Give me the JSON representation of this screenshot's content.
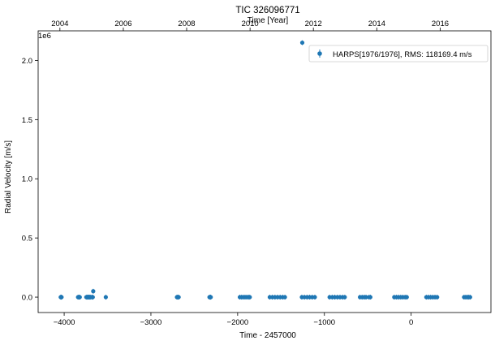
{
  "chart_data": {
    "type": "scatter",
    "title": "TIC 326096771",
    "xlabel": "Time - 2457000",
    "ylabel": "Radial Velocity [m/s]",
    "top_xlabel": "Time [Year]",
    "y_offset_label": "1e6",
    "xlim": [
      -4300,
      920
    ],
    "ylim": [
      -130000,
      2250000
    ],
    "x_ticks": [
      -4000,
      -3000,
      -2000,
      -1000,
      0
    ],
    "x_tick_labels": [
      "−4000",
      "−3000",
      "−2000",
      "−1000",
      "0"
    ],
    "y_ticks": [
      0,
      500000,
      1000000,
      1500000,
      2000000
    ],
    "y_tick_labels": [
      "0.0",
      "0.5",
      "1.0",
      "1.5",
      "2.0"
    ],
    "top_ticks": [
      {
        "label": "2004",
        "x": -4049
      },
      {
        "label": "2006",
        "x": -3318
      },
      {
        "label": "2008",
        "x": -2588
      },
      {
        "label": "2010",
        "x": -1857
      },
      {
        "label": "2012",
        "x": -1127
      },
      {
        "label": "2014",
        "x": -396
      },
      {
        "label": "2016",
        "x": 335
      }
    ],
    "legend": {
      "label": "HARPS[1976/1976], RMS:  118169.4 m/s",
      "position": "upper right"
    },
    "grid": false,
    "color": "#1f77b4",
    "series": [
      {
        "name": "HARPS[1976/1976], RMS:  118169.4 m/s",
        "points": [
          {
            "x": -4030,
            "y": 0
          },
          {
            "x": -4040,
            "y": 0
          },
          {
            "x": -4035,
            "y": 0
          },
          {
            "x": -3840,
            "y": 0
          },
          {
            "x": -3830,
            "y": 0
          },
          {
            "x": -3820,
            "y": 0
          },
          {
            "x": -3745,
            "y": 0
          },
          {
            "x": -3735,
            "y": 0
          },
          {
            "x": -3725,
            "y": 0
          },
          {
            "x": -3715,
            "y": 0
          },
          {
            "x": -3705,
            "y": 0
          },
          {
            "x": -3695,
            "y": 0
          },
          {
            "x": -3680,
            "y": 0
          },
          {
            "x": -3670,
            "y": 0
          },
          {
            "x": -3665,
            "y": 50000
          },
          {
            "x": -3520,
            "y": 0
          },
          {
            "x": -2700,
            "y": 0
          },
          {
            "x": -2690,
            "y": 0
          },
          {
            "x": -2680,
            "y": 0
          },
          {
            "x": -2325,
            "y": 0
          },
          {
            "x": -2315,
            "y": 0
          },
          {
            "x": -2310,
            "y": 0
          },
          {
            "x": -1975,
            "y": 0
          },
          {
            "x": -1955,
            "y": 0
          },
          {
            "x": -1935,
            "y": 0
          },
          {
            "x": -1915,
            "y": 0
          },
          {
            "x": -1895,
            "y": 0
          },
          {
            "x": -1875,
            "y": 0
          },
          {
            "x": -1860,
            "y": 0
          },
          {
            "x": -1630,
            "y": 0
          },
          {
            "x": -1600,
            "y": 0
          },
          {
            "x": -1570,
            "y": 0
          },
          {
            "x": -1540,
            "y": 0
          },
          {
            "x": -1510,
            "y": 0
          },
          {
            "x": -1480,
            "y": 0
          },
          {
            "x": -1455,
            "y": 0
          },
          {
            "x": -1260,
            "y": 0
          },
          {
            "x": -1230,
            "y": 0
          },
          {
            "x": -1200,
            "y": 0
          },
          {
            "x": -1170,
            "y": 0
          },
          {
            "x": -1140,
            "y": 0
          },
          {
            "x": -1110,
            "y": 0
          },
          {
            "x": -1255,
            "y": 2150000
          },
          {
            "x": -940,
            "y": 0
          },
          {
            "x": -910,
            "y": 0
          },
          {
            "x": -880,
            "y": 0
          },
          {
            "x": -850,
            "y": 0
          },
          {
            "x": -820,
            "y": 0
          },
          {
            "x": -790,
            "y": 0
          },
          {
            "x": -765,
            "y": 0
          },
          {
            "x": -590,
            "y": 0
          },
          {
            "x": -565,
            "y": 0
          },
          {
            "x": -540,
            "y": 0
          },
          {
            "x": -520,
            "y": 0
          },
          {
            "x": -485,
            "y": 0
          },
          {
            "x": -470,
            "y": 0
          },
          {
            "x": -195,
            "y": 0
          },
          {
            "x": -170,
            "y": 0
          },
          {
            "x": -145,
            "y": 0
          },
          {
            "x": -120,
            "y": 0
          },
          {
            "x": -95,
            "y": 0
          },
          {
            "x": -70,
            "y": 0
          },
          {
            "x": -50,
            "y": 0
          },
          {
            "x": 175,
            "y": 0
          },
          {
            "x": 200,
            "y": 0
          },
          {
            "x": 225,
            "y": 0
          },
          {
            "x": 250,
            "y": 0
          },
          {
            "x": 275,
            "y": 0
          },
          {
            "x": 300,
            "y": 0
          },
          {
            "x": 610,
            "y": 0
          },
          {
            "x": 630,
            "y": 0
          },
          {
            "x": 650,
            "y": 0
          },
          {
            "x": 665,
            "y": 0
          },
          {
            "x": 680,
            "y": 0
          }
        ]
      }
    ]
  }
}
